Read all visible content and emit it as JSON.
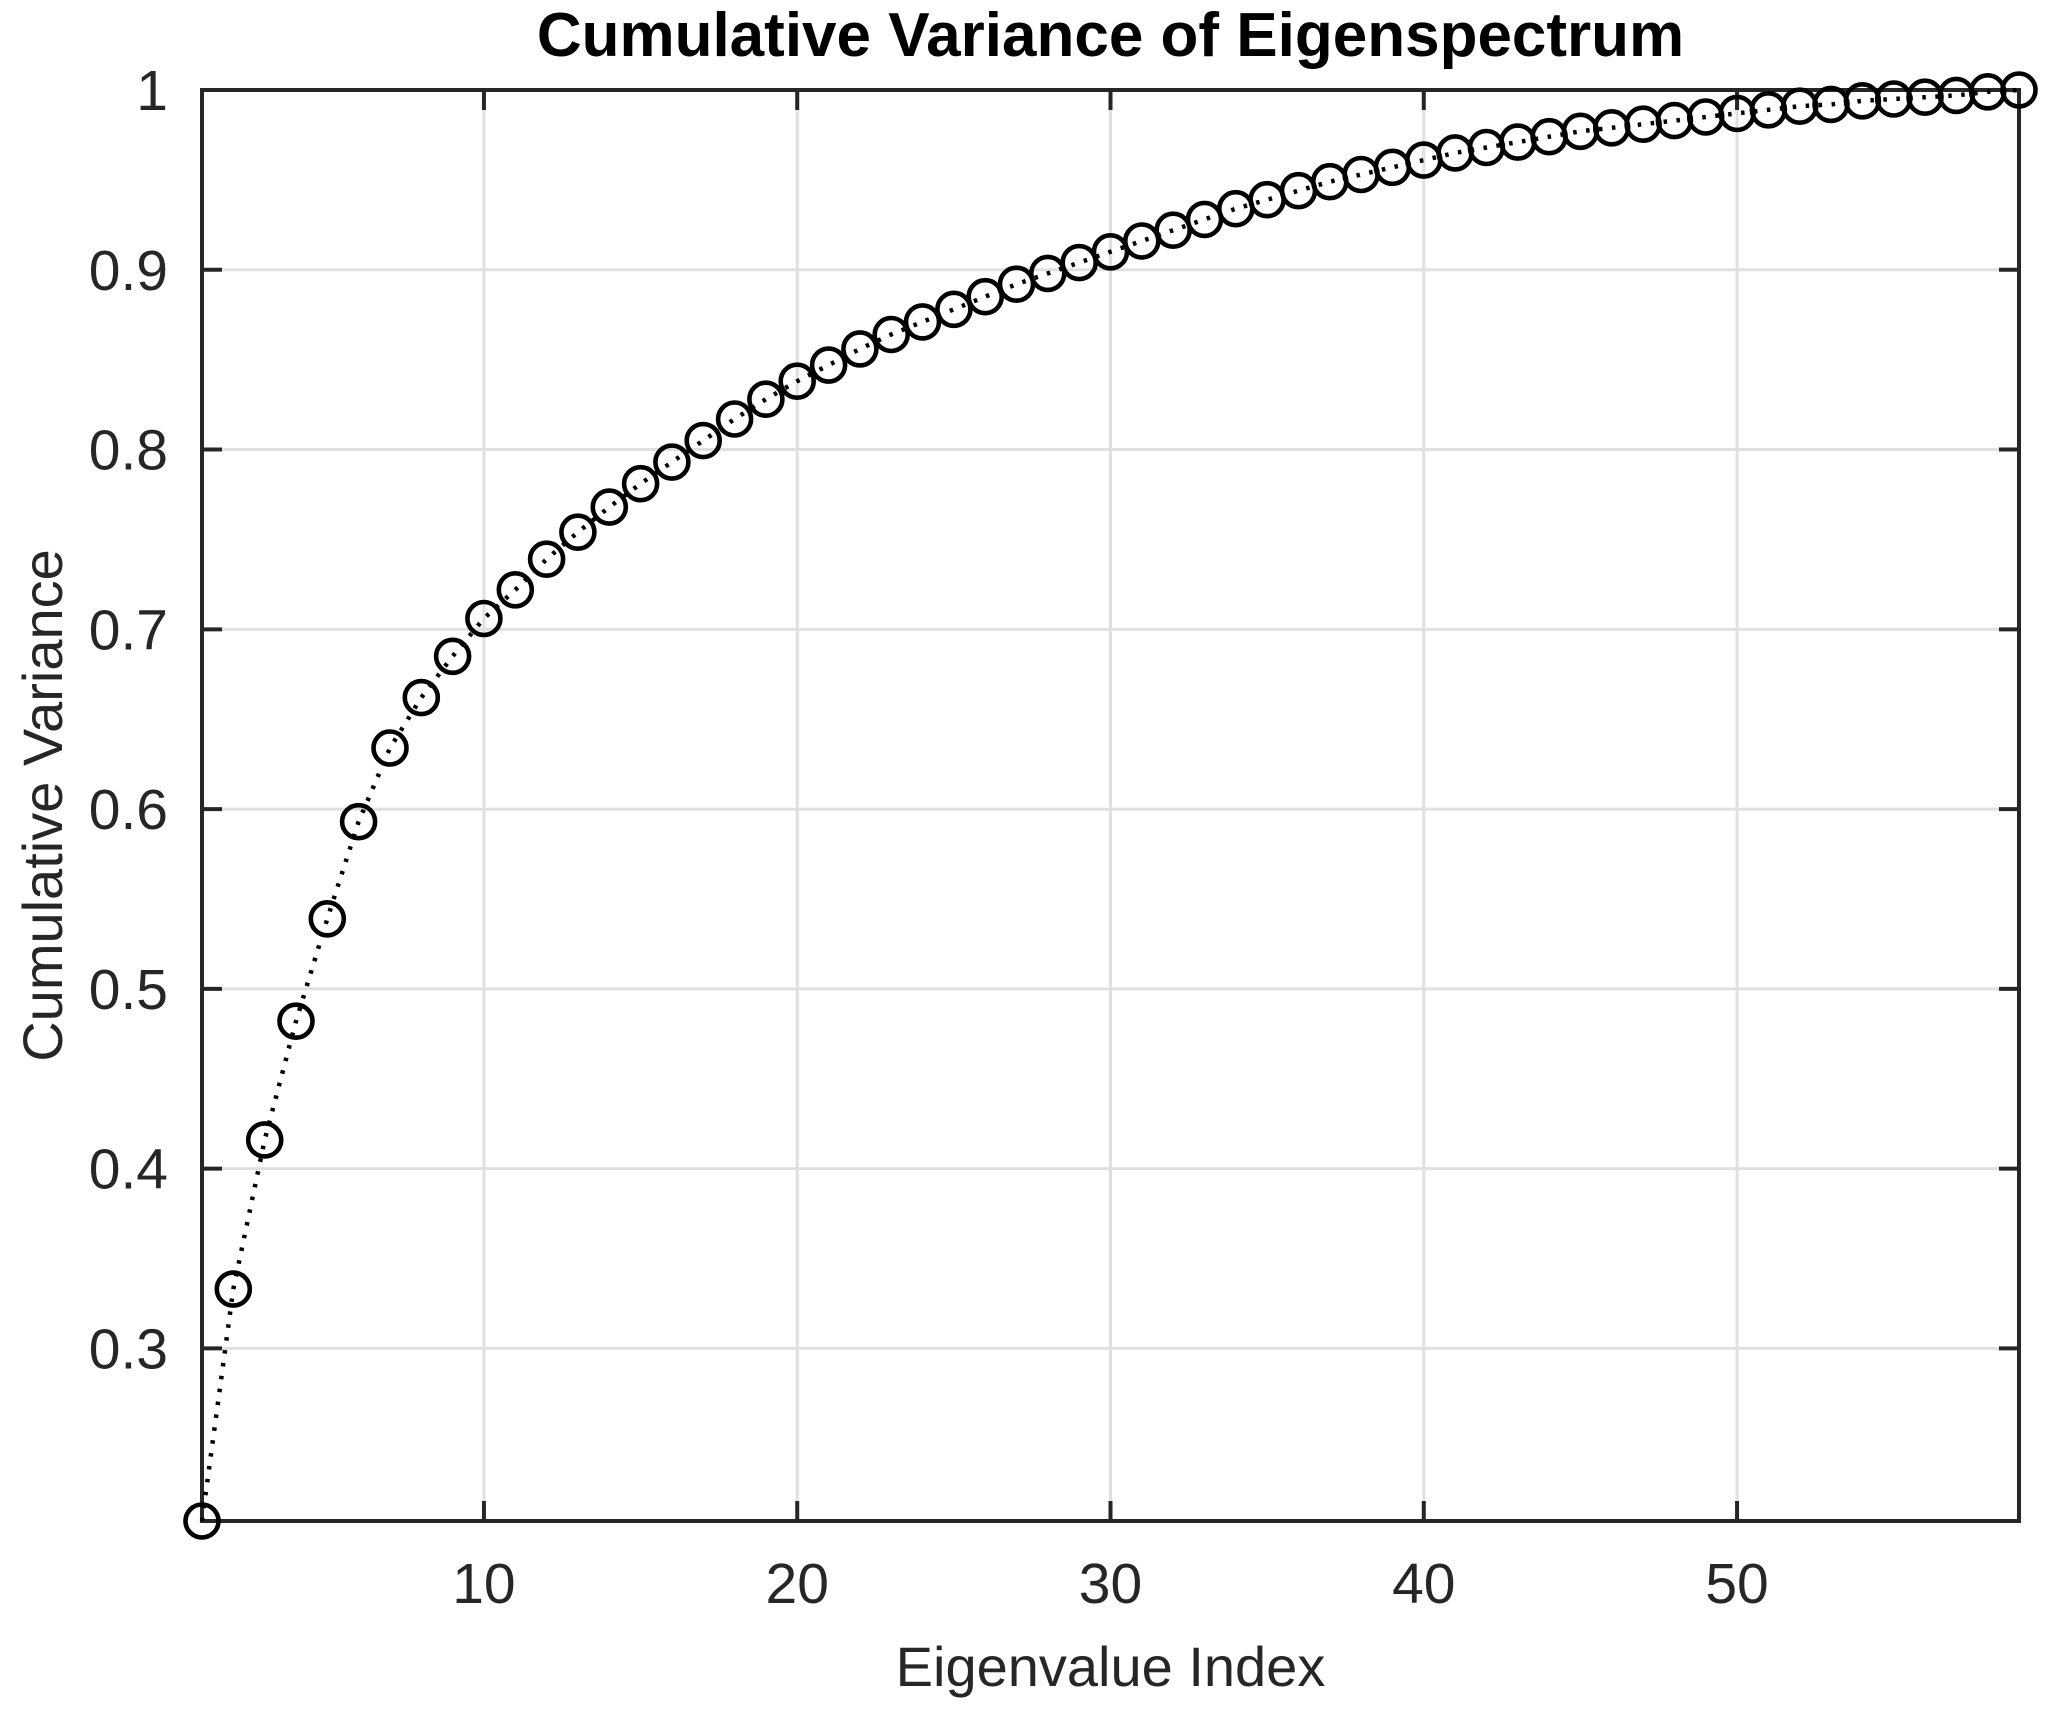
{
  "page": {
    "background": "#ffffff"
  },
  "chart_data": {
    "type": "line",
    "title": "Cumulative Variance of Eigenspectrum",
    "xlabel": "Eigenvalue Index",
    "ylabel": "Cumulative Variance",
    "x": [
      1,
      2,
      3,
      4,
      5,
      6,
      7,
      8,
      9,
      10,
      11,
      12,
      13,
      14,
      15,
      16,
      17,
      18,
      19,
      20,
      21,
      22,
      23,
      24,
      25,
      26,
      27,
      28,
      29,
      30,
      31,
      32,
      33,
      34,
      35,
      36,
      37,
      38,
      39,
      40,
      41,
      42,
      43,
      44,
      45,
      46,
      47,
      48,
      49,
      50,
      51,
      52,
      53,
      54,
      55,
      56,
      57,
      58,
      59
    ],
    "values": [
      0.204,
      0.333,
      0.416,
      0.482,
      0.539,
      0.593,
      0.634,
      0.662,
      0.685,
      0.706,
      0.722,
      0.739,
      0.754,
      0.768,
      0.781,
      0.793,
      0.805,
      0.817,
      0.828,
      0.838,
      0.847,
      0.856,
      0.864,
      0.871,
      0.878,
      0.885,
      0.892,
      0.898,
      0.904,
      0.91,
      0.916,
      0.922,
      0.928,
      0.934,
      0.939,
      0.944,
      0.949,
      0.953,
      0.957,
      0.961,
      0.965,
      0.968,
      0.971,
      0.974,
      0.977,
      0.979,
      0.981,
      0.983,
      0.985,
      0.987,
      0.989,
      0.991,
      0.992,
      0.994,
      0.995,
      0.996,
      0.997,
      0.999,
      1.0
    ],
    "xlim": [
      1,
      59
    ],
    "ylim": [
      0.204,
      1.0
    ],
    "xticks": [
      10,
      20,
      30,
      40,
      50
    ],
    "xtick_labels": [
      "10",
      "20",
      "30",
      "40",
      "50"
    ],
    "yticks": [
      0.3,
      0.4,
      0.5,
      0.6,
      0.7,
      0.8,
      0.9,
      1
    ],
    "ytick_labels": [
      "0.3",
      "0.4",
      "0.5",
      "0.6",
      "0.7",
      "0.8",
      "0.9",
      "1"
    ],
    "grid": true,
    "legend": null,
    "marker": "circle",
    "line_style": "dotted",
    "series_color": "#000000"
  },
  "style": {
    "background": "#ffffff",
    "axis_color": "#262626",
    "grid_color": "#e0e0e0",
    "tick_label_color": "#262626",
    "axis_label_color": "#262626",
    "title_color": "#000000"
  }
}
